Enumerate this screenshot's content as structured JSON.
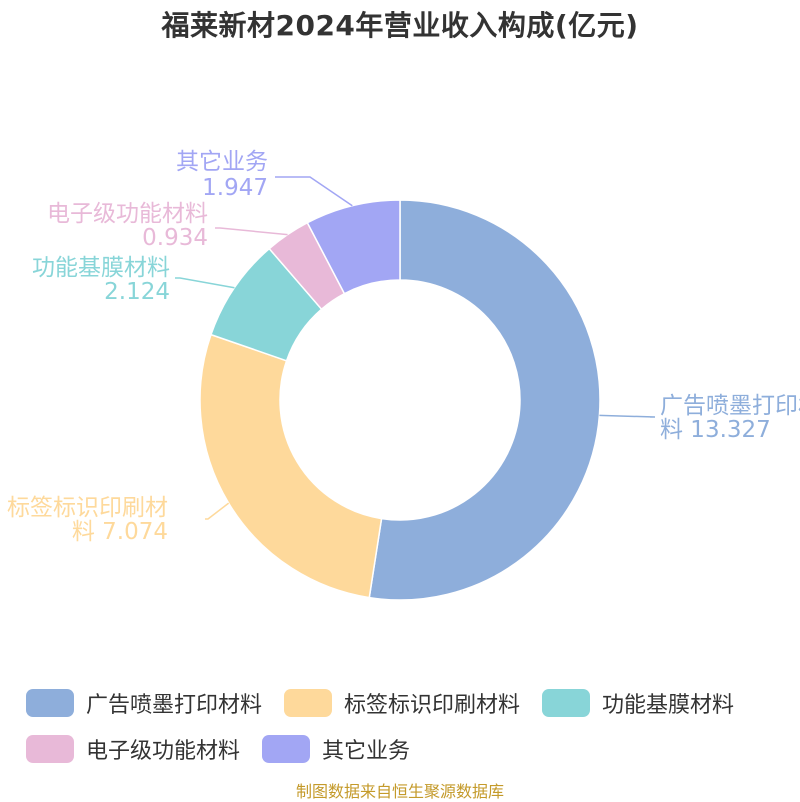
{
  "title": "福莱新材2024年营业收入构成(亿元)",
  "source": "制图数据来自恒生聚源数据库",
  "colors": {
    "广告喷墨打印材料": "#8eaedb",
    "标签标识印刷材料": "#fed99b",
    "功能基膜材料": "#88d5d8",
    "电子级功能材料": "#e8b9d8",
    "其它业务": "#a2a6f4"
  },
  "chart_data": {
    "type": "pie",
    "donut": true,
    "categories": [
      "广告喷墨打印材料",
      "标签标识印刷材料",
      "功能基膜材料",
      "电子级功能材料",
      "其它业务"
    ],
    "values": [
      13.327,
      7.074,
      2.124,
      0.934,
      1.947
    ],
    "labels": [
      [
        "广告喷墨打印材",
        "料 13.327"
      ],
      [
        "标签标识印刷材",
        "料 7.074"
      ],
      [
        "功能基膜材料",
        "2.124"
      ],
      [
        "电子级功能材料",
        "0.934"
      ],
      [
        "其它业务",
        "1.947"
      ]
    ],
    "legend": "bottom"
  }
}
